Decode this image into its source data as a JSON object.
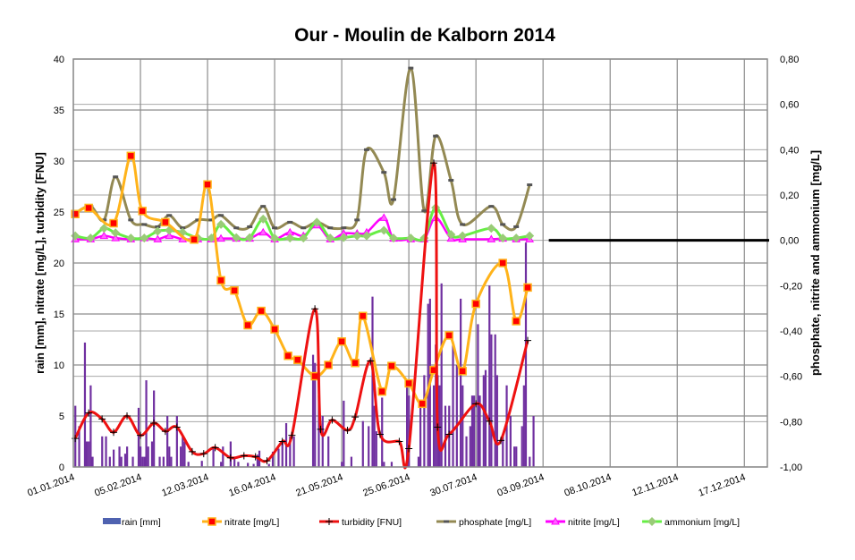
{
  "chart_data": {
    "type": "line",
    "title": "Our - Moulin de Kalborn 2014",
    "ylabel": "rain [mm], nitrate [mg/L], turbidity [FNU]",
    "y2label": "phosphate, nitrite and ammonium [mg/L]",
    "xlabel": "",
    "x_unit": "day of year 2014 (0 = 01.01.2014)",
    "xlim": [
      0,
      362
    ],
    "ylim": [
      0,
      40
    ],
    "y2lim": [
      -1.0,
      0.8
    ],
    "grid": true,
    "legend_position": "bottom",
    "x_ticks": [
      {
        "day": 0,
        "label": "01.01.2014"
      },
      {
        "day": 35,
        "label": "05.02.2014"
      },
      {
        "day": 70,
        "label": "12.03.2014"
      },
      {
        "day": 105,
        "label": "16.04.2014"
      },
      {
        "day": 140,
        "label": "21.05.2014"
      },
      {
        "day": 175,
        "label": "25.06.2014"
      },
      {
        "day": 210,
        "label": "30.07.2014"
      },
      {
        "day": 245,
        "label": "03.09.2014"
      },
      {
        "day": 280,
        "label": "08.10.2014"
      },
      {
        "day": 315,
        "label": "12.11.2014"
      },
      {
        "day": 350,
        "label": "17.12.2014"
      }
    ],
    "y_ticks": [
      {
        "value": 0,
        "label": "0"
      },
      {
        "value": 5,
        "label": "5"
      },
      {
        "value": 10,
        "label": "10"
      },
      {
        "value": 15,
        "label": "15"
      },
      {
        "value": 20,
        "label": "20"
      },
      {
        "value": 25,
        "label": "25"
      },
      {
        "value": 30,
        "label": "30"
      },
      {
        "value": 35,
        "label": "35"
      },
      {
        "value": 40,
        "label": "40"
      }
    ],
    "y2_ticks": [
      {
        "value": 0.8,
        "label": "0,80"
      },
      {
        "value": 0.6,
        "label": "0,60"
      },
      {
        "value": 0.4,
        "label": "0,40"
      },
      {
        "value": 0.2,
        "label": "0,20"
      },
      {
        "value": 0.0,
        "label": "0,00"
      },
      {
        "value": -0.2,
        "label": "-0,20"
      },
      {
        "value": -0.4,
        "label": "-0,40"
      },
      {
        "value": -0.6,
        "label": "-0,60"
      },
      {
        "value": -0.8,
        "label": "-0,80"
      },
      {
        "value": -1.0,
        "label": "-1,00"
      }
    ],
    "series": [
      {
        "name": "rain [mm]",
        "kind": "bar",
        "axis": "left",
        "color": "#7030A0",
        "legend_color": "#4F62B0",
        "points": [
          [
            1,
            6
          ],
          [
            3,
            4
          ],
          [
            6,
            12.2
          ],
          [
            7,
            2.5
          ],
          [
            8,
            2.5
          ],
          [
            9,
            8
          ],
          [
            10,
            1
          ],
          [
            15,
            3
          ],
          [
            17,
            3
          ],
          [
            19,
            1
          ],
          [
            21,
            1.7
          ],
          [
            24,
            2
          ],
          [
            25,
            1
          ],
          [
            27,
            1.3
          ],
          [
            28,
            2
          ],
          [
            31,
            1
          ],
          [
            34,
            5.8
          ],
          [
            35,
            2
          ],
          [
            36,
            1
          ],
          [
            37,
            1
          ],
          [
            38,
            8.5
          ],
          [
            39,
            2
          ],
          [
            41,
            2.5
          ],
          [
            42,
            7.5
          ],
          [
            45,
            1
          ],
          [
            47,
            1
          ],
          [
            49,
            5
          ],
          [
            50,
            2
          ],
          [
            51,
            1
          ],
          [
            54,
            5
          ],
          [
            56,
            2
          ],
          [
            57,
            3
          ],
          [
            58,
            2.5
          ],
          [
            60,
            0.5
          ],
          [
            67,
            0.6
          ],
          [
            73,
            1.8
          ],
          [
            77,
            0.5
          ],
          [
            78,
            2
          ],
          [
            82,
            2.5
          ],
          [
            84,
            1
          ],
          [
            86,
            0.5
          ],
          [
            91,
            0.4
          ],
          [
            94,
            0.3
          ],
          [
            96,
            1.2
          ],
          [
            97,
            1.6
          ],
          [
            102,
            0.3
          ],
          [
            104,
            1.5
          ],
          [
            107,
            1.8
          ],
          [
            109,
            2.5
          ],
          [
            111,
            4.3
          ],
          [
            113,
            3
          ],
          [
            115,
            3
          ],
          [
            125,
            11
          ],
          [
            126,
            10.2
          ],
          [
            128,
            7
          ],
          [
            130,
            5
          ],
          [
            133,
            3
          ],
          [
            140,
            0.5
          ],
          [
            141,
            6.5
          ],
          [
            145,
            1
          ],
          [
            151,
            4.5
          ],
          [
            154,
            4
          ],
          [
            156,
            16.7
          ],
          [
            157,
            6
          ],
          [
            158,
            3.5
          ],
          [
            161,
            6.8
          ],
          [
            162,
            0.5
          ],
          [
            166,
            0.5
          ],
          [
            174,
            8
          ],
          [
            175,
            7
          ],
          [
            180,
            1
          ],
          [
            181,
            6
          ],
          [
            183,
            9
          ],
          [
            185,
            16
          ],
          [
            186,
            16.5
          ],
          [
            188,
            8
          ],
          [
            189,
            12
          ],
          [
            190,
            9
          ],
          [
            191,
            8
          ],
          [
            192,
            18
          ],
          [
            194,
            6
          ],
          [
            196,
            6
          ],
          [
            198,
            12
          ],
          [
            200,
            10
          ],
          [
            202,
            16.5
          ],
          [
            203,
            8
          ],
          [
            205,
            3
          ],
          [
            207,
            4
          ],
          [
            208,
            7
          ],
          [
            209,
            7
          ],
          [
            211,
            14
          ],
          [
            212,
            7
          ],
          [
            214,
            9
          ],
          [
            215,
            9.5
          ],
          [
            217,
            17.8
          ],
          [
            218,
            13
          ],
          [
            220,
            13
          ],
          [
            221,
            9
          ],
          [
            224,
            3
          ],
          [
            226,
            8
          ],
          [
            228,
            5
          ],
          [
            230,
            2
          ],
          [
            231,
            2
          ],
          [
            234,
            4
          ],
          [
            235,
            8
          ],
          [
            236,
            22
          ],
          [
            238,
            1
          ],
          [
            240,
            5
          ]
        ]
      },
      {
        "name": "nitrate [mg/L]",
        "kind": "line",
        "axis": "left",
        "color": "#FFB31A",
        "marker_color": "#FF0000",
        "points": [
          [
            1,
            24.8
          ],
          [
            8,
            25.4
          ],
          [
            21,
            23.9
          ],
          [
            30,
            30.5
          ],
          [
            36,
            25.1
          ],
          [
            48,
            24.0
          ],
          [
            63,
            22.3
          ],
          [
            70,
            27.7
          ],
          [
            77,
            18.3
          ],
          [
            84,
            17.3
          ],
          [
            91,
            13.9
          ],
          [
            98,
            15.3
          ],
          [
            105,
            13.5
          ],
          [
            112,
            10.9
          ],
          [
            117,
            10.5
          ],
          [
            126,
            8.9
          ],
          [
            133,
            10.0
          ],
          [
            140,
            12.3
          ],
          [
            147,
            10.2
          ],
          [
            151,
            14.8
          ],
          [
            161,
            7.4
          ],
          [
            166,
            9.9
          ],
          [
            175,
            8.2
          ],
          [
            182,
            6.2
          ],
          [
            188,
            9.5
          ],
          [
            196,
            12.9
          ],
          [
            203,
            9.4
          ],
          [
            210,
            16.0
          ],
          [
            224,
            20.0
          ],
          [
            231,
            14.3
          ],
          [
            237,
            17.6
          ]
        ]
      },
      {
        "name": "turbidity [FNU]",
        "kind": "line",
        "axis": "left",
        "color": "#EE1111",
        "marker_color": "#000000",
        "points": [
          [
            1,
            2.8
          ],
          [
            8,
            5.3
          ],
          [
            15,
            4.7
          ],
          [
            21,
            3.4
          ],
          [
            28,
            5.0
          ],
          [
            35,
            3.1
          ],
          [
            42,
            4.3
          ],
          [
            48,
            3.5
          ],
          [
            54,
            3.9
          ],
          [
            62,
            1.5
          ],
          [
            68,
            1.3
          ],
          [
            74,
            1.9
          ],
          [
            82,
            0.9
          ],
          [
            89,
            1.1
          ],
          [
            95,
            1.0
          ],
          [
            101,
            0.6
          ],
          [
            109,
            2.5
          ],
          [
            114,
            3.1
          ],
          [
            126,
            15.5
          ],
          [
            129,
            3.7
          ],
          [
            135,
            4.6
          ],
          [
            143,
            3.6
          ],
          [
            147,
            4.9
          ],
          [
            155,
            10.4
          ],
          [
            160,
            3.2
          ],
          [
            170,
            2.5
          ],
          [
            175,
            1.8
          ],
          [
            188,
            29.8
          ],
          [
            190,
            3.9
          ],
          [
            196,
            3.2
          ],
          [
            210,
            6.2
          ],
          [
            217,
            4.5
          ],
          [
            223,
            2.6
          ],
          [
            237,
            12.4
          ]
        ]
      },
      {
        "name": "phosphate [mg/L]",
        "kind": "line",
        "axis": "right",
        "color": "#938953",
        "marker_color": "#555555",
        "points": [
          [
            1,
            0.12
          ],
          [
            9,
            0.15
          ],
          [
            16,
            0.09
          ],
          [
            22,
            0.28
          ],
          [
            30,
            0.09
          ],
          [
            37,
            0.07
          ],
          [
            44,
            0.06
          ],
          [
            50,
            0.11
          ],
          [
            57,
            0.055
          ],
          [
            65,
            0.09
          ],
          [
            72,
            0.09
          ],
          [
            77,
            0.11
          ],
          [
            85,
            0.055
          ],
          [
            92,
            0.06
          ],
          [
            99,
            0.15
          ],
          [
            105,
            0.055
          ],
          [
            113,
            0.08
          ],
          [
            120,
            0.055
          ],
          [
            127,
            0.08
          ],
          [
            134,
            0.055
          ],
          [
            141,
            0.055
          ],
          [
            148,
            0.09
          ],
          [
            153,
            0.4
          ],
          [
            162,
            0.3
          ],
          [
            167,
            0.18
          ],
          [
            176,
            0.76
          ],
          [
            183,
            0.13
          ],
          [
            189,
            0.46
          ],
          [
            197,
            0.265
          ],
          [
            203,
            0.07
          ],
          [
            218,
            0.15
          ],
          [
            224,
            0.07
          ],
          [
            231,
            0.06
          ],
          [
            238,
            0.245
          ]
        ]
      },
      {
        "name": "nitrite [mg/L]",
        "kind": "line",
        "axis": "right",
        "color": "#FF00FF",
        "marker_color": "#FF66FF",
        "points": [
          [
            1,
            0.005
          ],
          [
            9,
            0.005
          ],
          [
            16,
            0.02
          ],
          [
            22,
            0.01
          ],
          [
            30,
            0.005
          ],
          [
            37,
            0.01
          ],
          [
            44,
            0.005
          ],
          [
            50,
            0.02
          ],
          [
            57,
            0.005
          ],
          [
            65,
            0.005
          ],
          [
            72,
            0.005
          ],
          [
            77,
            0.008
          ],
          [
            85,
            0.008
          ],
          [
            92,
            0.008
          ],
          [
            99,
            0.035
          ],
          [
            105,
            0.005
          ],
          [
            113,
            0.035
          ],
          [
            120,
            0.02
          ],
          [
            127,
            0.067
          ],
          [
            134,
            0.005
          ],
          [
            141,
            0.03
          ],
          [
            148,
            0.03
          ],
          [
            153,
            0.035
          ],
          [
            162,
            0.1
          ],
          [
            167,
            0.008
          ],
          [
            176,
            0.005
          ],
          [
            183,
            0.005
          ],
          [
            189,
            0.1
          ],
          [
            197,
            0.008
          ],
          [
            203,
            0.005
          ],
          [
            218,
            0.005
          ],
          [
            224,
            0.008
          ],
          [
            231,
            0.005
          ],
          [
            238,
            0.005
          ]
        ]
      },
      {
        "name": "ammonium [mg/L]",
        "kind": "line",
        "axis": "right",
        "color": "#66EE44",
        "marker_color": "#99CC77",
        "points": [
          [
            1,
            0.02
          ],
          [
            9,
            0.01
          ],
          [
            16,
            0.053
          ],
          [
            22,
            0.033
          ],
          [
            30,
            0.01
          ],
          [
            37,
            0.01
          ],
          [
            44,
            0.04
          ],
          [
            50,
            0.044
          ],
          [
            57,
            0.035
          ],
          [
            65,
            0.01
          ],
          [
            72,
            0.01
          ],
          [
            77,
            0.07
          ],
          [
            85,
            0.012
          ],
          [
            92,
            0.012
          ],
          [
            99,
            0.094
          ],
          [
            105,
            0.01
          ],
          [
            113,
            0.01
          ],
          [
            120,
            0.01
          ],
          [
            127,
            0.08
          ],
          [
            134,
            0.01
          ],
          [
            141,
            0.012
          ],
          [
            148,
            0.02
          ],
          [
            153,
            0.02
          ],
          [
            162,
            0.044
          ],
          [
            167,
            0.01
          ],
          [
            176,
            0.01
          ],
          [
            183,
            0.01
          ],
          [
            189,
            0.144
          ],
          [
            197,
            0.026
          ],
          [
            203,
            0.02
          ],
          [
            218,
            0.053
          ],
          [
            224,
            0.01
          ],
          [
            231,
            0.01
          ],
          [
            238,
            0.02
          ]
        ]
      }
    ],
    "zero_reference_line": {
      "axis": "right",
      "value": 0.0,
      "from_day": 248,
      "color": "#000000"
    }
  }
}
